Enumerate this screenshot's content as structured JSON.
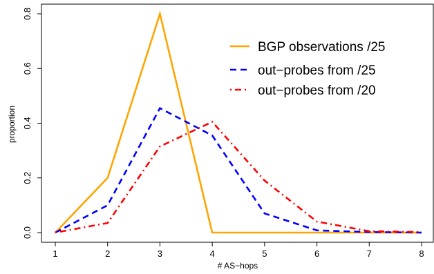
{
  "chart_data": {
    "type": "line",
    "xlabel": "# AS−hops",
    "ylabel": "proportion",
    "x": [
      1,
      2,
      3,
      4,
      5,
      6,
      7,
      8
    ],
    "xlim": [
      1,
      8
    ],
    "ylim": [
      0,
      0.8
    ],
    "xticks": [
      "1",
      "2",
      "3",
      "4",
      "5",
      "6",
      "7",
      "8"
    ],
    "yticks": [
      "0.0",
      "0.2",
      "0.4",
      "0.6",
      "0.8"
    ],
    "ytick_values": [
      0,
      0.2,
      0.4,
      0.6,
      0.8
    ],
    "grid": false,
    "legend_position": "top-right",
    "series": [
      {
        "name": "BGP observations /25",
        "color": "#FFA500",
        "style": "solid",
        "values": [
          0.0,
          0.2,
          0.8,
          0.0,
          0.0,
          0.0,
          0.0,
          0.0
        ]
      },
      {
        "name": "out−probes from /25",
        "color": "#0000FF",
        "style": "dashed",
        "values": [
          0.0,
          0.1,
          0.455,
          0.355,
          0.07,
          0.008,
          0.002,
          0.0
        ]
      },
      {
        "name": "out−probes from /20",
        "color": "#FF0000",
        "style": "dashdot",
        "values": [
          0.0,
          0.035,
          0.315,
          0.405,
          0.19,
          0.04,
          0.005,
          0.002
        ]
      }
    ]
  }
}
